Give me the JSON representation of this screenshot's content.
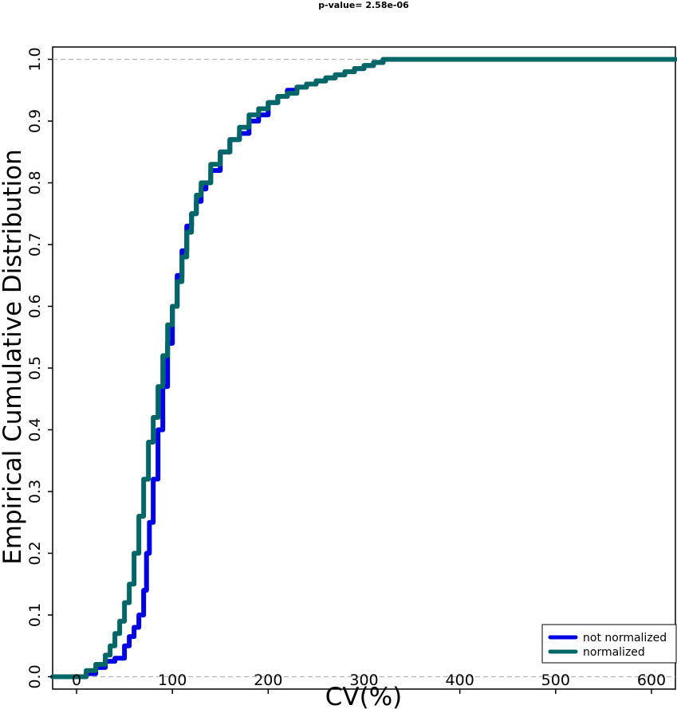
{
  "chart_data": {
    "type": "line",
    "title": "p-value= 2.58e-06",
    "xlabel": "CV(%)",
    "ylabel": "Empirical Cumulative Distribution",
    "xlim": [
      -25,
      625
    ],
    "ylim": [
      -0.02,
      1.02
    ],
    "x_ticks": [
      0,
      100,
      200,
      300,
      400,
      500,
      600
    ],
    "y_ticks": [
      0.0,
      0.1,
      0.2,
      0.3,
      0.4,
      0.5,
      0.6,
      0.7,
      0.8,
      0.9,
      1.0
    ],
    "reference_lines_y": [
      0.0,
      1.0
    ],
    "grid": false,
    "legend_position": "bottom-right",
    "series": [
      {
        "name": "not normalized",
        "color": "#0000e6",
        "x": [
          -25,
          0,
          10,
          20,
          30,
          40,
          50,
          55,
          60,
          65,
          70,
          73,
          76,
          80,
          85,
          90,
          95,
          100,
          105,
          110,
          115,
          120,
          125,
          130,
          135,
          140,
          150,
          160,
          170,
          180,
          190,
          200,
          210,
          220,
          230,
          240,
          250,
          260,
          270,
          280,
          290,
          300,
          310,
          320,
          625
        ],
        "y": [
          0.0,
          0.0,
          0.005,
          0.015,
          0.025,
          0.03,
          0.05,
          0.065,
          0.08,
          0.1,
          0.14,
          0.2,
          0.25,
          0.32,
          0.4,
          0.47,
          0.54,
          0.6,
          0.65,
          0.69,
          0.73,
          0.75,
          0.77,
          0.79,
          0.8,
          0.82,
          0.85,
          0.87,
          0.88,
          0.9,
          0.91,
          0.93,
          0.94,
          0.95,
          0.955,
          0.96,
          0.965,
          0.97,
          0.975,
          0.98,
          0.985,
          0.99,
          0.995,
          1.0,
          1.0
        ]
      },
      {
        "name": "normalized",
        "color": "#006666",
        "x": [
          -25,
          0,
          10,
          20,
          30,
          35,
          40,
          45,
          50,
          55,
          60,
          65,
          70,
          75,
          80,
          85,
          90,
          95,
          100,
          105,
          110,
          115,
          120,
          125,
          130,
          140,
          150,
          160,
          170,
          180,
          190,
          200,
          210,
          220,
          230,
          240,
          250,
          260,
          270,
          280,
          290,
          300,
          310,
          320,
          625
        ],
        "y": [
          0.0,
          0.0,
          0.01,
          0.02,
          0.035,
          0.05,
          0.07,
          0.09,
          0.12,
          0.15,
          0.2,
          0.26,
          0.32,
          0.38,
          0.42,
          0.47,
          0.52,
          0.57,
          0.6,
          0.64,
          0.68,
          0.72,
          0.75,
          0.78,
          0.8,
          0.83,
          0.85,
          0.87,
          0.89,
          0.91,
          0.92,
          0.93,
          0.94,
          0.945,
          0.955,
          0.96,
          0.965,
          0.97,
          0.975,
          0.98,
          0.985,
          0.99,
          0.995,
          1.0,
          1.0
        ]
      }
    ]
  }
}
